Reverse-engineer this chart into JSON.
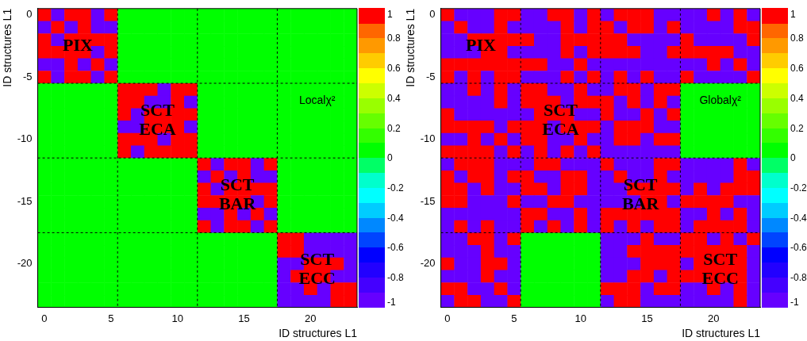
{
  "chart_data": [
    {
      "type": "heatmap",
      "xlabel": "ID structures L1",
      "ylabel": "ID structures L1",
      "x": [
        0,
        1,
        2,
        3,
        4,
        5,
        6,
        7,
        8,
        9,
        10,
        11,
        12,
        13,
        14,
        15,
        16,
        17,
        18,
        19,
        20,
        21,
        22,
        23
      ],
      "y": [
        0,
        -1,
        -2,
        -3,
        -4,
        -5,
        -6,
        -7,
        -8,
        -9,
        -10,
        -11,
        -12,
        -13,
        -14,
        -15,
        -16,
        -17,
        -18,
        -19,
        -20,
        -21,
        -22,
        -23
      ],
      "xlim": [
        -0.5,
        23.5
      ],
      "xticks": [
        0,
        5,
        10,
        15,
        20
      ],
      "ylim": [
        -23.5,
        0.5
      ],
      "yticks": [
        -20,
        -15,
        -10,
        -5,
        0
      ],
      "clim": [
        -1,
        1
      ],
      "cticks": [
        -1,
        -0.8,
        -0.6,
        -0.4,
        -0.2,
        0,
        0.2,
        0.4,
        0.6,
        0.8,
        1
      ],
      "colors": [
        "#6600ff",
        "#4400ff",
        "#2200ff",
        "#0000ff",
        "#0044ff",
        "#0088ff",
        "#00ccff",
        "#00ffff",
        "#00ffcc",
        "#00ff66",
        "#00ff00",
        "#33ff00",
        "#66ff00",
        "#99ff00",
        "#ccff00",
        "#ffff00",
        "#ffcc00",
        "#ff9900",
        "#ff6600",
        "#ff0000"
      ],
      "cells": [
        [
          1,
          -1,
          1,
          1,
          -1,
          1,
          0,
          0,
          0,
          0,
          0,
          0,
          0,
          0,
          0,
          0,
          0,
          0,
          0,
          0,
          0,
          0,
          0,
          0
        ],
        [
          -1,
          1,
          -1,
          1,
          -1,
          -1,
          0,
          0,
          0,
          0,
          0,
          0,
          0,
          0,
          0,
          0,
          0,
          0,
          0,
          0,
          0,
          0,
          0,
          0
        ],
        [
          1,
          -1,
          1,
          1,
          1,
          1,
          0,
          0,
          0,
          0,
          0,
          0,
          0,
          0,
          0,
          0,
          0,
          0,
          0,
          0,
          0,
          0,
          0,
          0
        ],
        [
          1,
          1,
          1,
          1,
          -1,
          1,
          0,
          0,
          0,
          0,
          0,
          0,
          0,
          0,
          0,
          0,
          0,
          0,
          0,
          0,
          0,
          0,
          0,
          0
        ],
        [
          -1,
          -1,
          1,
          -1,
          1,
          -1,
          0,
          0,
          0,
          0,
          0,
          0,
          0,
          0,
          0,
          0,
          0,
          0,
          0,
          0,
          0,
          0,
          0,
          0
        ],
        [
          1,
          -1,
          1,
          1,
          -1,
          1,
          0,
          0,
          0,
          0,
          0,
          0,
          0,
          0,
          0,
          0,
          0,
          0,
          0,
          0,
          0,
          0,
          0,
          0
        ],
        [
          0,
          0,
          0,
          0,
          0,
          0,
          1,
          1,
          1,
          -1,
          1,
          1,
          0,
          0,
          0,
          0,
          0,
          0,
          0,
          0,
          0,
          0,
          0,
          0
        ],
        [
          0,
          0,
          0,
          0,
          0,
          0,
          1,
          1,
          -1,
          -1,
          1,
          -1,
          0,
          0,
          0,
          0,
          0,
          0,
          0,
          0,
          0,
          0,
          0,
          0
        ],
        [
          0,
          0,
          0,
          0,
          0,
          0,
          1,
          -1,
          1,
          1,
          1,
          1,
          0,
          0,
          0,
          0,
          0,
          0,
          0,
          0,
          0,
          0,
          0,
          0
        ],
        [
          0,
          0,
          0,
          0,
          0,
          0,
          -1,
          -1,
          1,
          1,
          1,
          -1,
          0,
          0,
          0,
          0,
          0,
          0,
          0,
          0,
          0,
          0,
          0,
          0
        ],
        [
          0,
          0,
          0,
          0,
          0,
          0,
          1,
          1,
          1,
          -1,
          1,
          1,
          0,
          0,
          0,
          0,
          0,
          0,
          0,
          0,
          0,
          0,
          0,
          0
        ],
        [
          0,
          0,
          0,
          0,
          0,
          0,
          1,
          -1,
          1,
          1,
          1,
          1,
          0,
          0,
          0,
          0,
          0,
          0,
          0,
          0,
          0,
          0,
          0,
          0
        ],
        [
          0,
          0,
          0,
          0,
          0,
          0,
          0,
          0,
          0,
          0,
          0,
          0,
          1,
          -1,
          1,
          1,
          -1,
          1,
          0,
          0,
          0,
          0,
          0,
          0
        ],
        [
          0,
          0,
          0,
          0,
          0,
          0,
          0,
          0,
          0,
          0,
          0,
          0,
          -1,
          1,
          -1,
          1,
          -1,
          -1,
          0,
          0,
          0,
          0,
          0,
          0
        ],
        [
          0,
          0,
          0,
          0,
          0,
          0,
          0,
          0,
          0,
          0,
          0,
          0,
          1,
          -1,
          1,
          1,
          1,
          1,
          0,
          0,
          0,
          0,
          0,
          0
        ],
        [
          0,
          0,
          0,
          0,
          0,
          0,
          0,
          0,
          0,
          0,
          0,
          0,
          1,
          1,
          1,
          1,
          -1,
          1,
          0,
          0,
          0,
          0,
          0,
          0
        ],
        [
          0,
          0,
          0,
          0,
          0,
          0,
          0,
          0,
          0,
          0,
          0,
          0,
          -1,
          -1,
          1,
          -1,
          1,
          -1,
          0,
          0,
          0,
          0,
          0,
          0
        ],
        [
          0,
          0,
          0,
          0,
          0,
          0,
          0,
          0,
          0,
          0,
          0,
          0,
          1,
          -1,
          1,
          1,
          -1,
          1,
          0,
          0,
          0,
          0,
          0,
          0
        ],
        [
          0,
          0,
          0,
          0,
          0,
          0,
          0,
          0,
          0,
          0,
          0,
          0,
          0,
          0,
          0,
          0,
          0,
          0,
          1,
          1,
          -1,
          -1,
          -1,
          -1
        ],
        [
          0,
          0,
          0,
          0,
          0,
          0,
          0,
          0,
          0,
          0,
          0,
          0,
          0,
          0,
          0,
          0,
          0,
          0,
          1,
          1,
          -1,
          -1,
          -1,
          -1
        ],
        [
          0,
          0,
          0,
          0,
          0,
          0,
          0,
          0,
          0,
          0,
          0,
          0,
          0,
          0,
          0,
          0,
          0,
          0,
          -1,
          -1,
          1,
          1,
          1,
          -1
        ],
        [
          0,
          0,
          0,
          0,
          0,
          0,
          0,
          0,
          0,
          0,
          0,
          0,
          0,
          0,
          0,
          0,
          0,
          0,
          -1,
          1,
          1,
          1,
          -1,
          -1
        ],
        [
          0,
          0,
          0,
          0,
          0,
          0,
          0,
          0,
          0,
          0,
          0,
          0,
          0,
          0,
          0,
          0,
          0,
          0,
          -1,
          -1,
          1,
          -1,
          1,
          1
        ],
        [
          0,
          0,
          0,
          0,
          0,
          0,
          0,
          0,
          0,
          0,
          0,
          0,
          0,
          0,
          0,
          0,
          0,
          0,
          -1,
          -1,
          -1,
          -1,
          1,
          1
        ]
      ],
      "ref_lines": [
        {
          "axis": "x",
          "value": 5.5,
          "line_style": "dashed"
        },
        {
          "axis": "x",
          "value": 11.5,
          "line_style": "dashed"
        },
        {
          "axis": "x",
          "value": 17.5,
          "line_style": "dashed"
        },
        {
          "axis": "y",
          "value": -5.5,
          "line_style": "dashed"
        },
        {
          "axis": "y",
          "value": -11.5,
          "line_style": "dashed"
        },
        {
          "axis": "y",
          "value": -17.5,
          "line_style": "dashed"
        }
      ],
      "annotations": [
        "PIX",
        "SCT\nECA",
        "SCT\nBAR",
        "SCT\nECC",
        "Localχ²"
      ]
    },
    {
      "type": "heatmap",
      "xlabel": "ID structures L1",
      "ylabel": "ID structures L1",
      "x": [
        0,
        1,
        2,
        3,
        4,
        5,
        6,
        7,
        8,
        9,
        10,
        11,
        12,
        13,
        14,
        15,
        16,
        17,
        18,
        19,
        20,
        21,
        22,
        23
      ],
      "y": [
        0,
        -1,
        -2,
        -3,
        -4,
        -5,
        -6,
        -7,
        -8,
        -9,
        -10,
        -11,
        -12,
        -13,
        -14,
        -15,
        -16,
        -17,
        -18,
        -19,
        -20,
        -21,
        -22,
        -23
      ],
      "xlim": [
        -0.5,
        23.5
      ],
      "xticks": [
        0,
        5,
        10,
        15,
        20
      ],
      "ylim": [
        -23.5,
        0.5
      ],
      "yticks": [
        -20,
        -15,
        -10,
        -5,
        0
      ],
      "clim": [
        -1,
        1
      ],
      "cticks": [
        -1,
        -0.8,
        -0.6,
        -0.4,
        -0.2,
        0,
        0.2,
        0.4,
        0.6,
        0.8,
        1
      ],
      "colors": [
        "#6600ff",
        "#4400ff",
        "#2200ff",
        "#0000ff",
        "#0044ff",
        "#0088ff",
        "#00ccff",
        "#00ffff",
        "#00ffcc",
        "#00ff66",
        "#00ff00",
        "#33ff00",
        "#66ff00",
        "#99ff00",
        "#ccff00",
        "#ffff00",
        "#ffcc00",
        "#ff9900",
        "#ff6600",
        "#ff0000"
      ],
      "cells": [
        [
          1,
          -1,
          -1,
          -1,
          1,
          1,
          -1,
          -1,
          1,
          1,
          -1,
          1,
          -1,
          1,
          1,
          1,
          -1,
          -1,
          -1,
          -1,
          1,
          -1,
          1,
          -1
        ],
        [
          -1,
          1,
          -1,
          -1,
          1,
          -1,
          -1,
          -1,
          -1,
          1,
          -1,
          1,
          1,
          -1,
          1,
          1,
          -1,
          1,
          -1,
          -1,
          -1,
          -1,
          1,
          1
        ],
        [
          -1,
          -1,
          1,
          1,
          1,
          1,
          1,
          -1,
          -1,
          1,
          1,
          1,
          1,
          1,
          -1,
          -1,
          -1,
          -1,
          1,
          -1,
          -1,
          -1,
          -1,
          1
        ],
        [
          -1,
          -1,
          -1,
          1,
          1,
          -1,
          -1,
          -1,
          -1,
          1,
          -1,
          1,
          1,
          1,
          1,
          -1,
          -1,
          1,
          1,
          1,
          1,
          1,
          -1,
          -1
        ],
        [
          1,
          1,
          1,
          1,
          1,
          1,
          1,
          1,
          -1,
          -1,
          1,
          -1,
          -1,
          -1,
          -1,
          -1,
          -1,
          -1,
          -1,
          -1,
          1,
          -1,
          1,
          -1
        ],
        [
          1,
          -1,
          1,
          -1,
          1,
          1,
          -1,
          -1,
          -1,
          1,
          -1,
          1,
          -1,
          1,
          -1,
          1,
          -1,
          -1,
          1,
          -1,
          -1,
          -1,
          -1,
          1
        ],
        [
          -1,
          -1,
          1,
          -1,
          1,
          -1,
          1,
          1,
          -1,
          -1,
          1,
          -1,
          -1,
          1,
          1,
          -1,
          1,
          1,
          0,
          0,
          0,
          0,
          0,
          0
        ],
        [
          -1,
          -1,
          -1,
          -1,
          1,
          -1,
          1,
          1,
          1,
          -1,
          1,
          1,
          1,
          -1,
          1,
          -1,
          1,
          -1,
          0,
          0,
          0,
          0,
          0,
          0
        ],
        [
          1,
          -1,
          -1,
          -1,
          -1,
          -1,
          -1,
          1,
          1,
          1,
          -1,
          -1,
          1,
          -1,
          -1,
          1,
          -1,
          1,
          0,
          0,
          0,
          0,
          0,
          0
        ],
        [
          1,
          1,
          1,
          1,
          -1,
          1,
          1,
          1,
          -1,
          1,
          1,
          1,
          -1,
          1,
          1,
          1,
          -1,
          -1,
          0,
          0,
          0,
          0,
          0,
          0
        ],
        [
          -1,
          -1,
          1,
          -1,
          1,
          -1,
          1,
          1,
          -1,
          -1,
          1,
          -1,
          -1,
          1,
          1,
          -1,
          1,
          1,
          0,
          0,
          0,
          0,
          0,
          0
        ],
        [
          1,
          1,
          1,
          1,
          -1,
          1,
          -1,
          1,
          -1,
          1,
          -1,
          1,
          -1,
          -1,
          -1,
          -1,
          -1,
          -1,
          0,
          0,
          0,
          0,
          0,
          0
        ],
        [
          -1,
          1,
          1,
          1,
          -1,
          -1,
          -1,
          1,
          1,
          -1,
          -1,
          -1,
          1,
          -1,
          -1,
          -1,
          1,
          1,
          -1,
          -1,
          -1,
          -1,
          1,
          -1
        ],
        [
          1,
          -1,
          1,
          1,
          -1,
          1,
          1,
          -1,
          -1,
          1,
          1,
          -1,
          -1,
          1,
          -1,
          -1,
          1,
          -1,
          -1,
          -1,
          -1,
          -1,
          1,
          1
        ],
        [
          1,
          1,
          -1,
          1,
          -1,
          -1,
          1,
          1,
          -1,
          1,
          1,
          -1,
          -1,
          -1,
          1,
          1,
          1,
          1,
          -1,
          1,
          -1,
          1,
          1,
          1
        ],
        [
          1,
          1,
          -1,
          -1,
          -1,
          1,
          -1,
          -1,
          1,
          1,
          -1,
          -1,
          -1,
          -1,
          -1,
          1,
          1,
          -1,
          1,
          1,
          1,
          1,
          -1,
          -1
        ],
        [
          -1,
          -1,
          -1,
          -1,
          -1,
          -1,
          1,
          1,
          -1,
          -1,
          1,
          -1,
          1,
          1,
          1,
          1,
          1,
          1,
          -1,
          -1,
          1,
          -1,
          1,
          -1
        ],
        [
          -1,
          1,
          -1,
          1,
          -1,
          -1,
          1,
          -1,
          1,
          -1,
          1,
          -1,
          1,
          -1,
          1,
          -1,
          1,
          1,
          -1,
          1,
          1,
          1,
          1,
          -1
        ],
        [
          -1,
          -1,
          1,
          1,
          -1,
          1,
          0,
          0,
          0,
          0,
          0,
          0,
          -1,
          -1,
          -1,
          1,
          -1,
          -1,
          1,
          1,
          -1,
          1,
          -1,
          1
        ],
        [
          -1,
          -1,
          -1,
          1,
          -1,
          -1,
          0,
          0,
          0,
          0,
          0,
          0,
          -1,
          -1,
          1,
          1,
          1,
          1,
          1,
          1,
          1,
          1,
          1,
          -1
        ],
        [
          1,
          -1,
          -1,
          1,
          1,
          -1,
          0,
          0,
          0,
          0,
          0,
          0,
          -1,
          -1,
          -1,
          1,
          1,
          1,
          -1,
          1,
          1,
          1,
          1,
          -1
        ],
        [
          -1,
          -1,
          -1,
          1,
          -1,
          -1,
          0,
          0,
          0,
          0,
          0,
          0,
          -1,
          -1,
          1,
          1,
          -1,
          1,
          1,
          1,
          1,
          1,
          1,
          -1
        ],
        [
          1,
          1,
          -1,
          -1,
          1,
          -1,
          0,
          0,
          0,
          0,
          0,
          0,
          1,
          1,
          1,
          -1,
          1,
          1,
          -1,
          -1,
          1,
          -1,
          1,
          -1
        ],
        [
          -1,
          1,
          1,
          -1,
          -1,
          1,
          0,
          0,
          0,
          0,
          0,
          0,
          -1,
          1,
          1,
          -1,
          -1,
          -1,
          -1,
          -1,
          -1,
          -1,
          1,
          -1
        ]
      ],
      "ref_lines": [
        {
          "axis": "x",
          "value": 5.5,
          "line_style": "dashed"
        },
        {
          "axis": "x",
          "value": 11.5,
          "line_style": "dashed"
        },
        {
          "axis": "x",
          "value": 17.5,
          "line_style": "dashed"
        },
        {
          "axis": "y",
          "value": -5.5,
          "line_style": "dashed"
        },
        {
          "axis": "y",
          "value": -11.5,
          "line_style": "dashed"
        },
        {
          "axis": "y",
          "value": -17.5,
          "line_style": "dashed"
        }
      ],
      "annotations": [
        "PIX",
        "SCT\nECA",
        "SCT\nBAR",
        "SCT\nECC",
        "Globalχ²"
      ]
    }
  ]
}
